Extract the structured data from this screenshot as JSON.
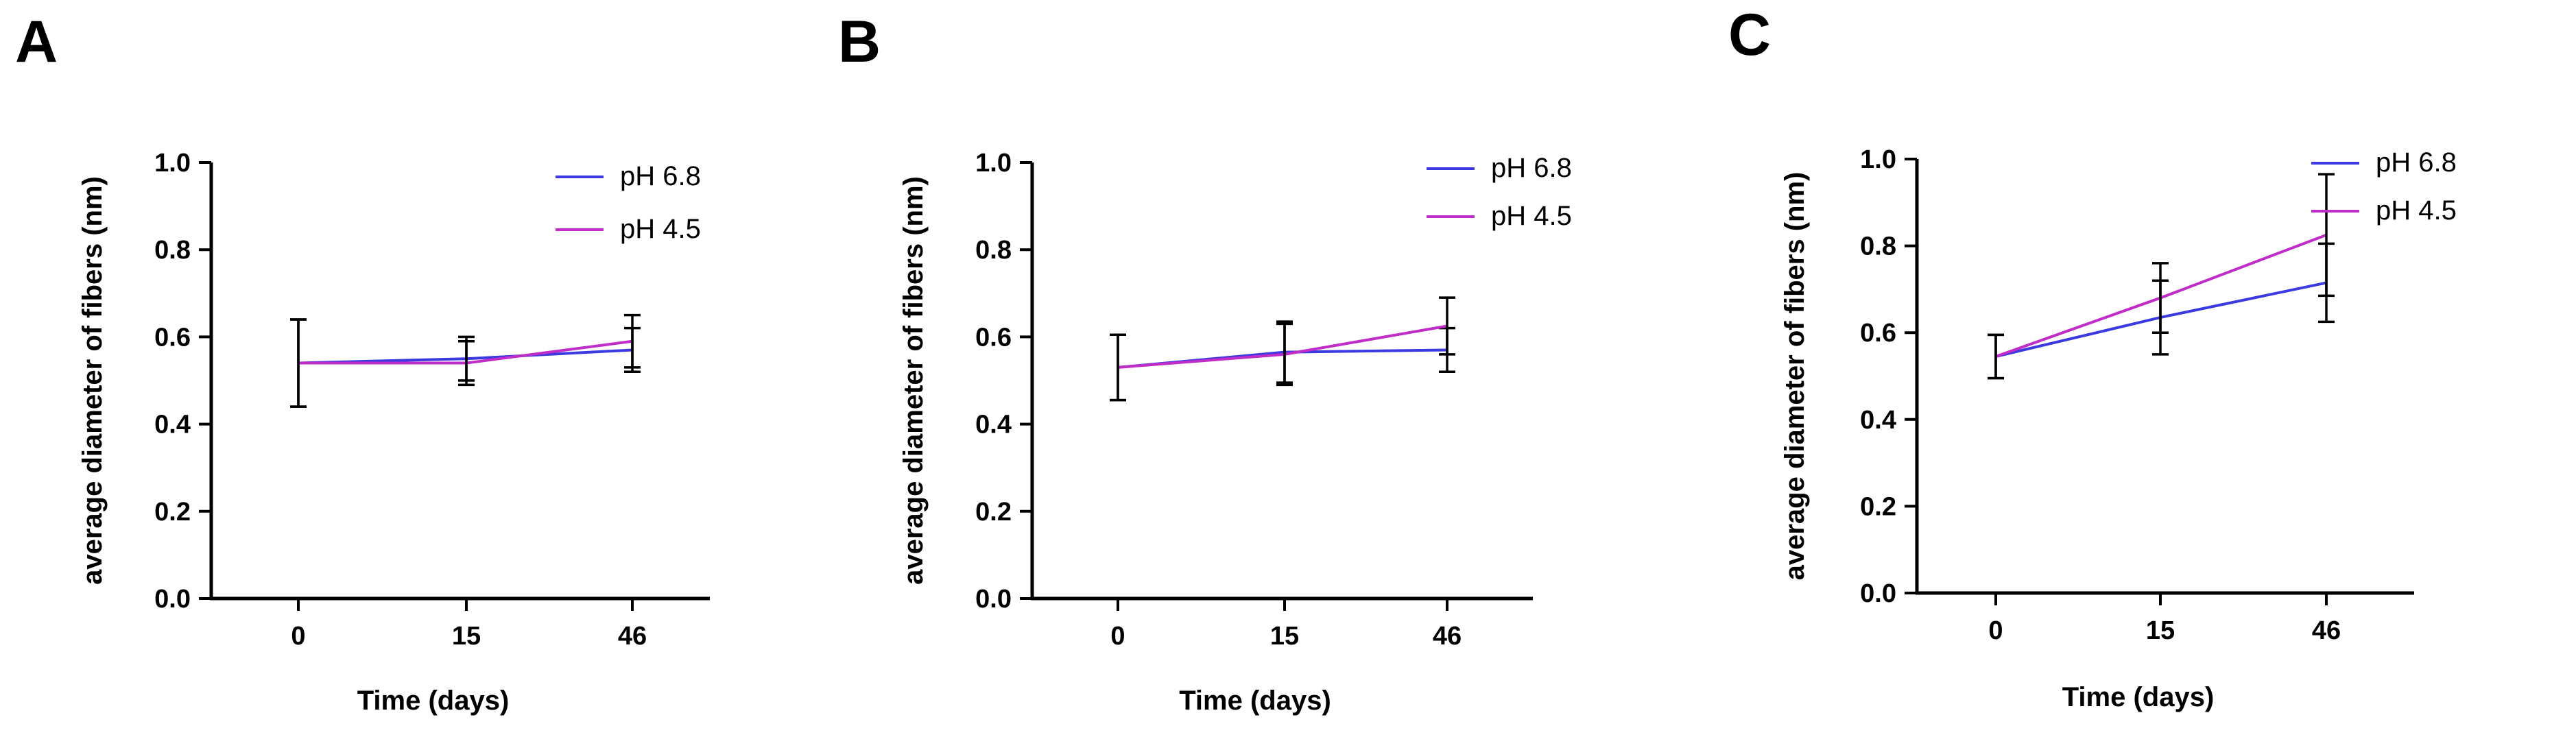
{
  "colors": {
    "pH 6.8": "#3a3ae0",
    "pH 4.5": "#c02cc8",
    "axis": "#000000"
  },
  "chart_data": [
    {
      "panel": "A",
      "type": "line",
      "x": [
        0,
        15,
        46
      ],
      "xtick_labels": [
        "0",
        "15",
        "46"
      ],
      "xlabel": "Time (days)",
      "ylabel": "average diameter of fibers (nm)",
      "ylim": [
        0.0,
        1.0
      ],
      "yticks": [
        0.0,
        0.2,
        0.4,
        0.6,
        0.8,
        1.0
      ],
      "ytick_labels": [
        "0.0",
        "0.2",
        "0.4",
        "0.6",
        "0.8",
        "1.0"
      ],
      "legend": "top-right",
      "series": [
        {
          "name": "pH 6.8",
          "values": [
            0.54,
            0.55,
            0.57
          ],
          "error": [
            0.1,
            0.05,
            0.05
          ]
        },
        {
          "name": "pH 4.5",
          "values": [
            0.54,
            0.54,
            0.59
          ],
          "error": [
            0.1,
            0.05,
            0.06
          ]
        }
      ]
    },
    {
      "panel": "B",
      "type": "line",
      "x": [
        0,
        15,
        46
      ],
      "xtick_labels": [
        "0",
        "15",
        "46"
      ],
      "xlabel": "Time (days)",
      "ylabel": "average diameter of fibers (nm)",
      "ylim": [
        0.0,
        1.0
      ],
      "yticks": [
        0.0,
        0.2,
        0.4,
        0.6,
        0.8,
        1.0
      ],
      "ytick_labels": [
        "0.0",
        "0.2",
        "0.4",
        "0.6",
        "0.8",
        "1.0"
      ],
      "legend": "top-right",
      "series": [
        {
          "name": "pH 6.8",
          "values": [
            0.53,
            0.565,
            0.57
          ],
          "error": [
            0.075,
            0.07,
            0.05
          ]
        },
        {
          "name": "pH 4.5",
          "values": [
            0.53,
            0.56,
            0.625
          ],
          "error": [
            0.075,
            0.07,
            0.065
          ]
        }
      ]
    },
    {
      "panel": "C",
      "type": "line",
      "x": [
        0,
        15,
        46
      ],
      "xtick_labels": [
        "0",
        "15",
        "46"
      ],
      "xlabel": "Time (days)",
      "ylabel": "average diameter of fibers (nm)",
      "ylim": [
        0.0,
        1.0
      ],
      "yticks": [
        0.0,
        0.2,
        0.4,
        0.6,
        0.8,
        1.0
      ],
      "ytick_labels": [
        "0.0",
        "0.2",
        "0.4",
        "0.6",
        "0.8",
        "1.0"
      ],
      "legend": "top-right",
      "series": [
        {
          "name": "pH 6.8",
          "values": [
            0.545,
            0.635,
            0.715
          ],
          "error": [
            0.05,
            0.085,
            0.09
          ]
        },
        {
          "name": "pH 4.5",
          "values": [
            0.545,
            0.68,
            0.825
          ],
          "error": [
            0.05,
            0.08,
            0.14
          ]
        }
      ]
    }
  ]
}
